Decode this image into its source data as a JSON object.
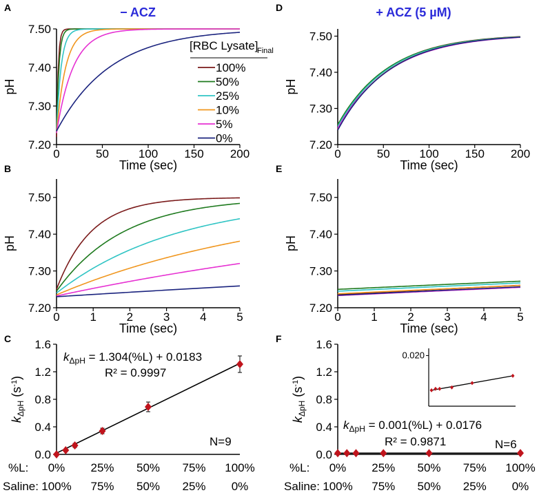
{
  "figure": {
    "left_header": "− ACZ",
    "right_header": "+ ACZ (5 µM)",
    "colors": {
      "header": "#2b2bd9",
      "axis": "#000000",
      "marker": "#c0141c",
      "fitline": "#000000"
    }
  },
  "chart_data": [
    {
      "id": "A",
      "type": "line",
      "title": "− ACZ",
      "xlabel": "Time (sec)",
      "ylabel": "pH",
      "xlim": [
        0,
        200
      ],
      "ylim": [
        7.2,
        7.5
      ],
      "xticks": [
        0,
        50,
        100,
        150,
        200
      ],
      "xtick_labels": [
        "0",
        "50",
        "100",
        "150",
        "200"
      ],
      "yticks": [
        7.2,
        7.3,
        7.4,
        7.5
      ],
      "ytick_labels": [
        "7.20",
        "7.30",
        "7.40",
        "7.50"
      ],
      "legend": {
        "title_main": "[RBC Lysate]",
        "title_sub": "Final",
        "placement": "right",
        "entries": [
          "100%",
          "50%",
          "25%",
          "10%",
          "5%",
          "0%"
        ]
      },
      "series": [
        {
          "name": "100%",
          "color": "#7a1a1a",
          "y0": 7.22,
          "k": 0.55,
          "ymax": 7.5
        },
        {
          "name": "50%",
          "color": "#1e7a1e",
          "y0": 7.23,
          "k": 0.38,
          "ymax": 7.5
        },
        {
          "name": "25%",
          "color": "#2fc4c4",
          "y0": 7.23,
          "k": 0.2,
          "ymax": 7.5
        },
        {
          "name": "10%",
          "color": "#f0961e",
          "y0": 7.23,
          "k": 0.1,
          "ymax": 7.5
        },
        {
          "name": "5%",
          "color": "#e630d2",
          "y0": 7.23,
          "k": 0.055,
          "ymax": 7.5
        },
        {
          "name": "0%",
          "color": "#1a237e",
          "y0": 7.235,
          "k": 0.017,
          "ymax": 7.5
        }
      ]
    },
    {
      "id": "B",
      "type": "line",
      "xlabel": "Time (sec)",
      "ylabel": "pH",
      "xlim": [
        0,
        5
      ],
      "ylim": [
        7.2,
        7.55
      ],
      "xticks": [
        0,
        1,
        2,
        3,
        4,
        5
      ],
      "xtick_labels": [
        "0",
        "1",
        "2",
        "3",
        "4",
        "5"
      ],
      "yticks": [
        7.2,
        7.3,
        7.4,
        7.5
      ],
      "ytick_labels": [
        "7.20",
        "7.30",
        "7.40",
        "7.50"
      ],
      "series": [
        {
          "name": "100%",
          "color": "#7a1a1a",
          "y0": 7.25,
          "k": 1.05,
          "ymax": 7.5
        },
        {
          "name": "50%",
          "color": "#1e7a1e",
          "y0": 7.245,
          "k": 0.55,
          "ymax": 7.5
        },
        {
          "name": "25%",
          "color": "#2fc4c4",
          "y0": 7.24,
          "k": 0.3,
          "ymax": 7.5
        },
        {
          "name": "10%",
          "color": "#f0961e",
          "y0": 7.235,
          "k": 0.16,
          "ymax": 7.5
        },
        {
          "name": "5%",
          "color": "#e630d2",
          "y0": 7.232,
          "k": 0.08,
          "ymax": 7.5
        },
        {
          "name": "0%",
          "color": "#1a237e",
          "y0": 7.23,
          "k": 0.023,
          "ymax": 7.5
        }
      ]
    },
    {
      "id": "C",
      "type": "scatter",
      "xlabel": "",
      "ylabel": "kΔpH (s-1)",
      "xlim": [
        0,
        1
      ],
      "ylim": [
        0,
        1.6
      ],
      "yticks": [
        0,
        0.4,
        0.8,
        1.2,
        1.6
      ],
      "ytick_labels": [
        "0.0",
        "0.4",
        "0.8",
        "1.2",
        "1.6"
      ],
      "row_labels": [
        "%L:",
        "Saline:"
      ],
      "pct_L": [
        "0%",
        "25%",
        "50%",
        "75%",
        "100%"
      ],
      "pct_saline": [
        "100%",
        "75%",
        "50%",
        "25%",
        "0%"
      ],
      "equation": "= 1.304(%L) + 0.0183",
      "r2": "R² = 0.9997",
      "n": "N=9",
      "fit": {
        "slope": 1.304,
        "intercept": 0.0183
      },
      "x": [
        0,
        0.05,
        0.1,
        0.25,
        0.5,
        1.0
      ],
      "y": [
        0.0,
        0.06,
        0.13,
        0.34,
        0.69,
        1.31
      ],
      "err": [
        0.01,
        0.02,
        0.03,
        0.04,
        0.07,
        0.12
      ]
    },
    {
      "id": "D",
      "type": "line",
      "title": "+ ACZ (5 µM)",
      "xlabel": "Time (sec)",
      "ylabel": "pH",
      "xlim": [
        0,
        200
      ],
      "ylim": [
        7.2,
        7.52
      ],
      "xticks": [
        0,
        50,
        100,
        150,
        200
      ],
      "xtick_labels": [
        "0",
        "50",
        "100",
        "150",
        "200"
      ],
      "yticks": [
        7.2,
        7.3,
        7.4,
        7.5
      ],
      "ytick_labels": [
        "7.20",
        "7.30",
        "7.40",
        "7.50"
      ],
      "series": [
        {
          "name": "100%",
          "color": "#7a1a1a",
          "y0": 7.245,
          "k": 0.0185,
          "ymax": 7.505
        },
        {
          "name": "50%",
          "color": "#1e7a1e",
          "y0": 7.255,
          "k": 0.018,
          "ymax": 7.505
        },
        {
          "name": "25%",
          "color": "#2fc4c4",
          "y0": 7.25,
          "k": 0.0178,
          "ymax": 7.505
        },
        {
          "name": "10%",
          "color": "#f0961e",
          "y0": 7.242,
          "k": 0.0176,
          "ymax": 7.505
        },
        {
          "name": "5%",
          "color": "#e630d2",
          "y0": 7.245,
          "k": 0.0172,
          "ymax": 7.505
        },
        {
          "name": "0%",
          "color": "#1a237e",
          "y0": 7.24,
          "k": 0.0176,
          "ymax": 7.505
        }
      ]
    },
    {
      "id": "E",
      "type": "line",
      "xlabel": "Time (sec)",
      "ylabel": "pH",
      "xlim": [
        0,
        5
      ],
      "ylim": [
        7.2,
        7.55
      ],
      "xticks": [
        0,
        1,
        2,
        3,
        4,
        5
      ],
      "xtick_labels": [
        "0",
        "1",
        "2",
        "3",
        "4",
        "5"
      ],
      "yticks": [
        7.2,
        7.3,
        7.4,
        7.5
      ],
      "ytick_labels": [
        "7.20",
        "7.30",
        "7.40",
        "7.50"
      ],
      "series": [
        {
          "name": "100%",
          "color": "#7a1a1a",
          "y0": 7.236,
          "k": 0.0195,
          "ymax": 7.505
        },
        {
          "name": "50%",
          "color": "#1e7a1e",
          "y0": 7.25,
          "k": 0.0182,
          "ymax": 7.505
        },
        {
          "name": "25%",
          "color": "#2fc4c4",
          "y0": 7.245,
          "k": 0.018,
          "ymax": 7.505
        },
        {
          "name": "10%",
          "color": "#f0961e",
          "y0": 7.238,
          "k": 0.0176,
          "ymax": 7.505
        },
        {
          "name": "5%",
          "color": "#e630d2",
          "y0": 7.233,
          "k": 0.0172,
          "ymax": 7.505
        },
        {
          "name": "0%",
          "color": "#1a237e",
          "y0": 7.234,
          "k": 0.0176,
          "ymax": 7.505
        }
      ]
    },
    {
      "id": "F",
      "type": "scatter",
      "xlabel": "",
      "ylabel": "kΔpH (s-1)",
      "xlim": [
        0,
        1
      ],
      "ylim": [
        0,
        1.6
      ],
      "yticks": [
        0,
        0.4,
        0.8,
        1.2,
        1.6
      ],
      "ytick_labels": [
        "0.0",
        "0.4",
        "0.8",
        "1.2",
        "1.6"
      ],
      "row_labels": [
        "%L:",
        "Saline:"
      ],
      "pct_L": [
        "0%",
        "25%",
        "50%",
        "75%",
        "100%"
      ],
      "pct_saline": [
        "100%",
        "75%",
        "50%",
        "25%",
        "0%"
      ],
      "equation": "= 0.001(%L) + 0.0176",
      "r2": "R² = 0.9871",
      "n": "N=6",
      "fit": {
        "slope": 0.001,
        "intercept": 0.0176
      },
      "x": [
        0,
        0.05,
        0.1,
        0.25,
        0.5,
        1.0
      ],
      "y": [
        0.0176,
        0.0177,
        0.0177,
        0.0178,
        0.0181,
        0.0186
      ],
      "inset": {
        "ytick_label": "0.020",
        "ylim": [
          0.0165,
          0.0205
        ],
        "ytick": 0.02
      }
    }
  ]
}
